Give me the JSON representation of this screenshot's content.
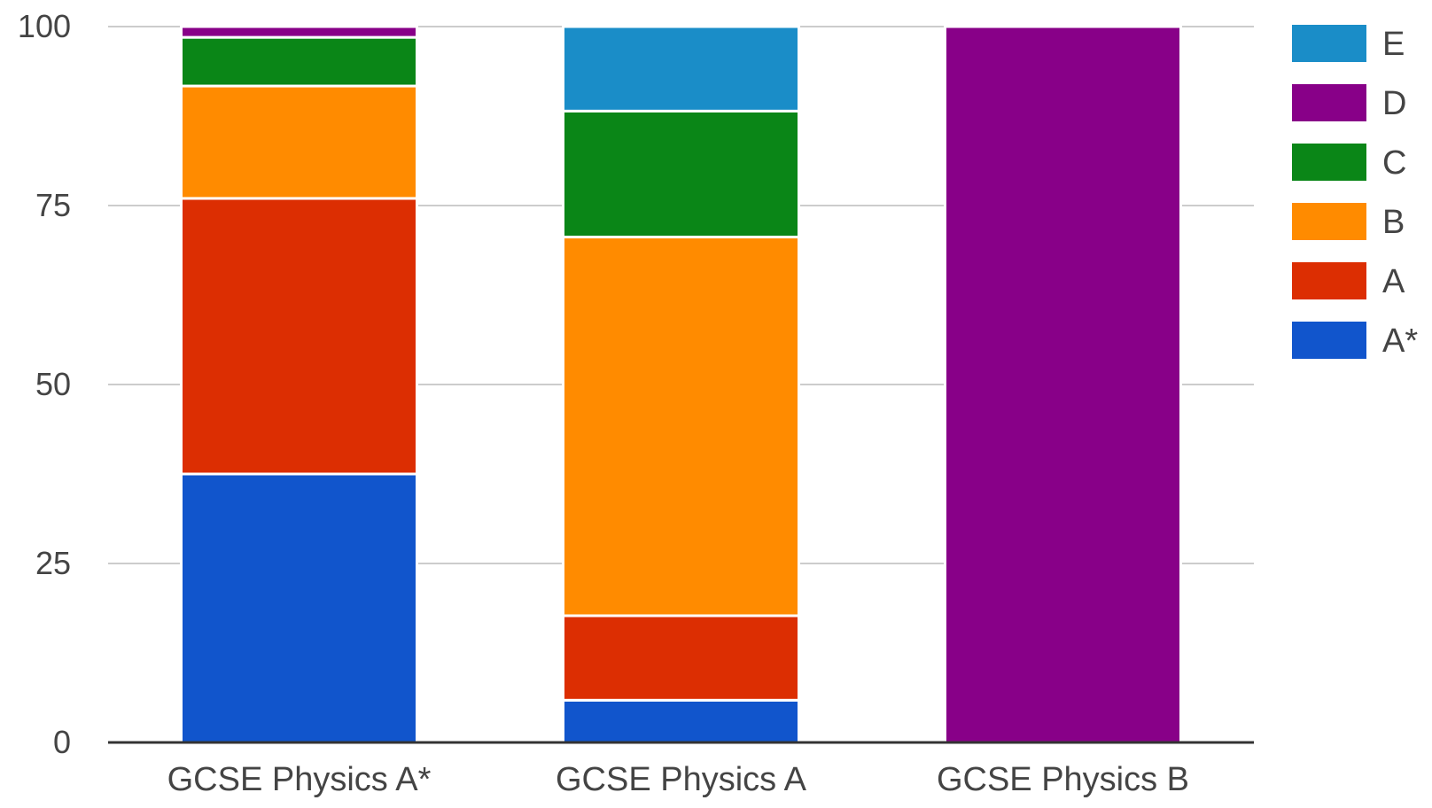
{
  "chart_data": {
    "type": "bar",
    "stacked": true,
    "categories": [
      "GCSE Physics A*",
      "GCSE Physics A",
      "GCSE Physics B"
    ],
    "series": [
      {
        "name": "A*",
        "color": "#1155cc",
        "values": [
          37.5,
          5.9,
          0
        ]
      },
      {
        "name": "A",
        "color": "#dc2e02",
        "values": [
          38.5,
          11.8,
          0
        ]
      },
      {
        "name": "B",
        "color": "#ff8b00",
        "values": [
          15.7,
          52.9,
          0
        ]
      },
      {
        "name": "C",
        "color": "#0a8617",
        "values": [
          6.8,
          17.6,
          0
        ]
      },
      {
        "name": "D",
        "color": "#880088",
        "values": [
          1.5,
          0,
          100
        ]
      },
      {
        "name": "E",
        "color": "#1a8dc8",
        "values": [
          0,
          11.8,
          0
        ]
      }
    ],
    "legend_order": [
      "E",
      "D",
      "C",
      "B",
      "A",
      "A*"
    ],
    "ylim": [
      0,
      100
    ],
    "yticks": [
      "0",
      "25",
      "50",
      "75",
      "100"
    ],
    "grid": true,
    "legend_position": "right",
    "title": "",
    "xlabel": "",
    "ylabel": ""
  }
}
